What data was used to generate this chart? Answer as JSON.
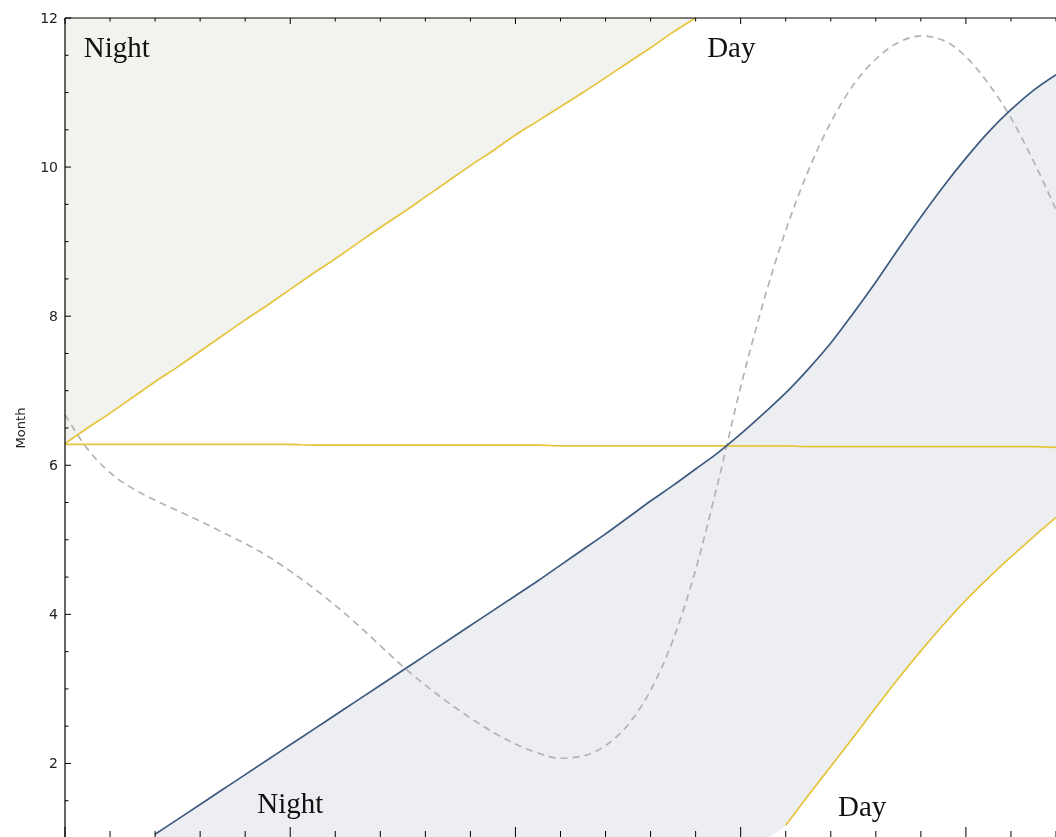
{
  "chart_data": {
    "type": "line",
    "ylabel": "Month",
    "categories": [
      null,
      null,
      null,
      null,
      null,
      null,
      null,
      null,
      null,
      null,
      null,
      null,
      null,
      null,
      null,
      null,
      null,
      null,
      null,
      null,
      null,
      null,
      null,
      null,
      null,
      null,
      null,
      null,
      null,
      null,
      null,
      null,
      null,
      null,
      null,
      null,
      null,
      null,
      null,
      null,
      null,
      null,
      null,
      null,
      null
    ],
    "ylim": [
      1,
      12
    ],
    "yticks": [
      {
        "value": 1.5,
        "label": null
      },
      2,
      {
        "value": 2.5,
        "label": null
      },
      {
        "value": 3,
        "label": null
      },
      {
        "value": 3.5,
        "label": null
      },
      4,
      {
        "value": 4.5,
        "label": null
      },
      {
        "value": 5,
        "label": null
      },
      {
        "value": 5.5,
        "label": null
      },
      6,
      {
        "value": 6.5,
        "label": null
      },
      {
        "value": 7,
        "label": null
      },
      {
        "value": 7.5,
        "label": null
      },
      8,
      {
        "value": 8.5,
        "label": null
      },
      {
        "value": 9,
        "label": null
      },
      {
        "value": 9.5,
        "label": null
      },
      10,
      {
        "value": 10.5,
        "label": null
      },
      {
        "value": 11,
        "label": null
      },
      {
        "value": 11.5,
        "label": null
      },
      12
    ],
    "tick_labels": "y",
    "line_style": "solid",
    "series": [
      {
        "color": "#b3b3b3",
        "line_style": "dashed",
        "values": [
          6.68,
          6.22,
          5.9,
          5.69,
          5.53,
          5.39,
          5.25,
          5.1,
          4.95,
          4.78,
          4.58,
          4.36,
          4.12,
          3.86,
          3.58,
          3.3,
          3.05,
          2.82,
          2.61,
          2.42,
          2.26,
          2.14,
          2.07,
          2.1,
          2.24,
          2.52,
          2.98,
          3.66,
          4.6,
          5.78,
          7.05,
          8.18,
          9.15,
          9.95,
          10.6,
          11.1,
          11.45,
          11.67,
          11.76,
          11.7,
          11.48,
          11.12,
          10.66,
          10.08,
          9.43
        ]
      },
      {
        "color": "#e6c43a",
        "values": [
          6.29,
          6.5,
          6.7,
          6.91,
          7.12,
          7.32,
          7.53,
          7.74,
          7.95,
          8.15,
          8.36,
          8.57,
          8.77,
          8.98,
          9.19,
          9.39,
          9.6,
          9.81,
          10.02,
          10.22,
          10.43,
          10.62,
          10.81,
          11.0,
          11.2,
          11.4,
          11.6,
          11.81,
          12,
          null,
          null,
          null,
          null,
          null,
          null,
          null,
          null,
          null,
          null,
          null,
          null,
          null,
          null,
          null,
          null
        ],
        "lower": [
          6.29,
          6.5,
          6.7,
          6.91,
          7.12,
          7.32,
          7.53,
          7.74,
          7.95,
          8.15,
          8.36,
          8.57,
          8.77,
          8.98,
          9.19,
          9.39,
          9.6,
          9.81,
          10.02,
          10.22,
          10.43,
          10.62,
          10.81,
          11.0,
          11.2,
          11.4,
          11.6,
          11.81,
          12,
          null,
          null,
          null,
          null,
          null,
          null,
          null,
          null,
          null,
          null,
          null,
          null,
          null,
          null,
          null,
          null
        ],
        "upper": [
          12,
          12,
          12,
          12,
          12,
          12,
          12,
          12,
          12,
          12,
          12,
          12,
          12,
          12,
          12,
          12,
          12,
          12,
          12,
          12,
          12,
          12,
          12,
          12,
          12,
          12,
          12,
          12,
          12,
          null,
          null,
          null,
          null,
          null,
          null,
          null,
          null,
          null,
          null,
          null,
          null,
          null,
          null,
          null,
          null
        ]
      },
      {
        "color": "#e6c43a",
        "values": [
          6.28,
          6.28,
          6.28,
          6.28,
          6.28,
          6.28,
          6.28,
          6.28,
          6.28,
          6.28,
          6.28,
          6.27,
          6.27,
          6.27,
          6.27,
          6.27,
          6.27,
          6.27,
          6.27,
          6.27,
          6.27,
          6.27,
          6.26,
          6.26,
          6.26,
          6.26,
          6.26,
          6.26,
          6.26,
          6.26,
          6.26,
          6.26,
          6.26,
          6.25,
          6.25,
          6.25,
          6.25,
          6.25,
          6.25,
          6.25,
          6.25,
          6.25,
          6.25,
          6.25,
          6.24
        ]
      },
      {
        "color": "#e6c43a",
        "values": [
          null,
          null,
          null,
          null,
          null,
          null,
          null,
          null,
          null,
          null,
          null,
          null,
          null,
          null,
          null,
          null,
          null,
          null,
          null,
          null,
          null,
          null,
          null,
          null,
          null,
          null,
          null,
          null,
          null,
          null,
          null,
          null,
          1.17,
          1.57,
          1.96,
          2.35,
          2.75,
          3.14,
          3.51,
          3.86,
          4.19,
          4.49,
          4.77,
          5.04,
          5.3
        ]
      },
      {
        "color": "#3c5a80",
        "values": [
          null,
          null,
          null,
          null,
          1.05,
          1.25,
          1.45,
          1.65,
          1.85,
          2.05,
          2.25,
          2.45,
          2.65,
          2.85,
          3.05,
          3.25,
          3.45,
          3.65,
          3.85,
          4.05,
          4.25,
          4.45,
          4.66,
          4.87,
          5.08,
          5.3,
          5.52,
          5.73,
          5.95,
          6.17,
          6.42,
          6.69,
          6.97,
          7.29,
          7.64,
          8.04,
          8.46,
          8.9,
          9.33,
          9.74,
          10.12,
          10.47,
          10.77,
          11.03,
          11.24
        ],
        "lower": [
          null,
          null,
          null,
          null,
          1,
          1,
          1,
          1,
          1,
          1,
          1,
          1,
          1,
          1,
          1,
          1,
          1,
          1,
          1,
          1,
          1,
          1,
          1,
          1,
          1,
          1,
          1,
          1,
          1,
          1,
          1,
          1,
          1.17,
          1.57,
          1.96,
          2.35,
          2.75,
          3.14,
          3.51,
          3.86,
          4.19,
          4.49,
          4.77,
          5.04,
          5.3
        ],
        "upper": [
          null,
          null,
          null,
          null,
          1.05,
          1.25,
          1.45,
          1.65,
          1.85,
          2.05,
          2.25,
          2.45,
          2.65,
          2.85,
          3.05,
          3.25,
          3.45,
          3.65,
          3.85,
          4.05,
          4.25,
          4.45,
          4.66,
          4.87,
          5.08,
          5.3,
          5.52,
          5.73,
          5.95,
          6.17,
          6.42,
          6.69,
          6.97,
          7.29,
          7.64,
          8.04,
          8.46,
          8.9,
          9.33,
          9.74,
          10.12,
          10.47,
          10.77,
          11.03,
          11.24
        ]
      }
    ],
    "annotations": [
      "Night",
      "Day",
      "Night",
      "Day"
    ]
  }
}
